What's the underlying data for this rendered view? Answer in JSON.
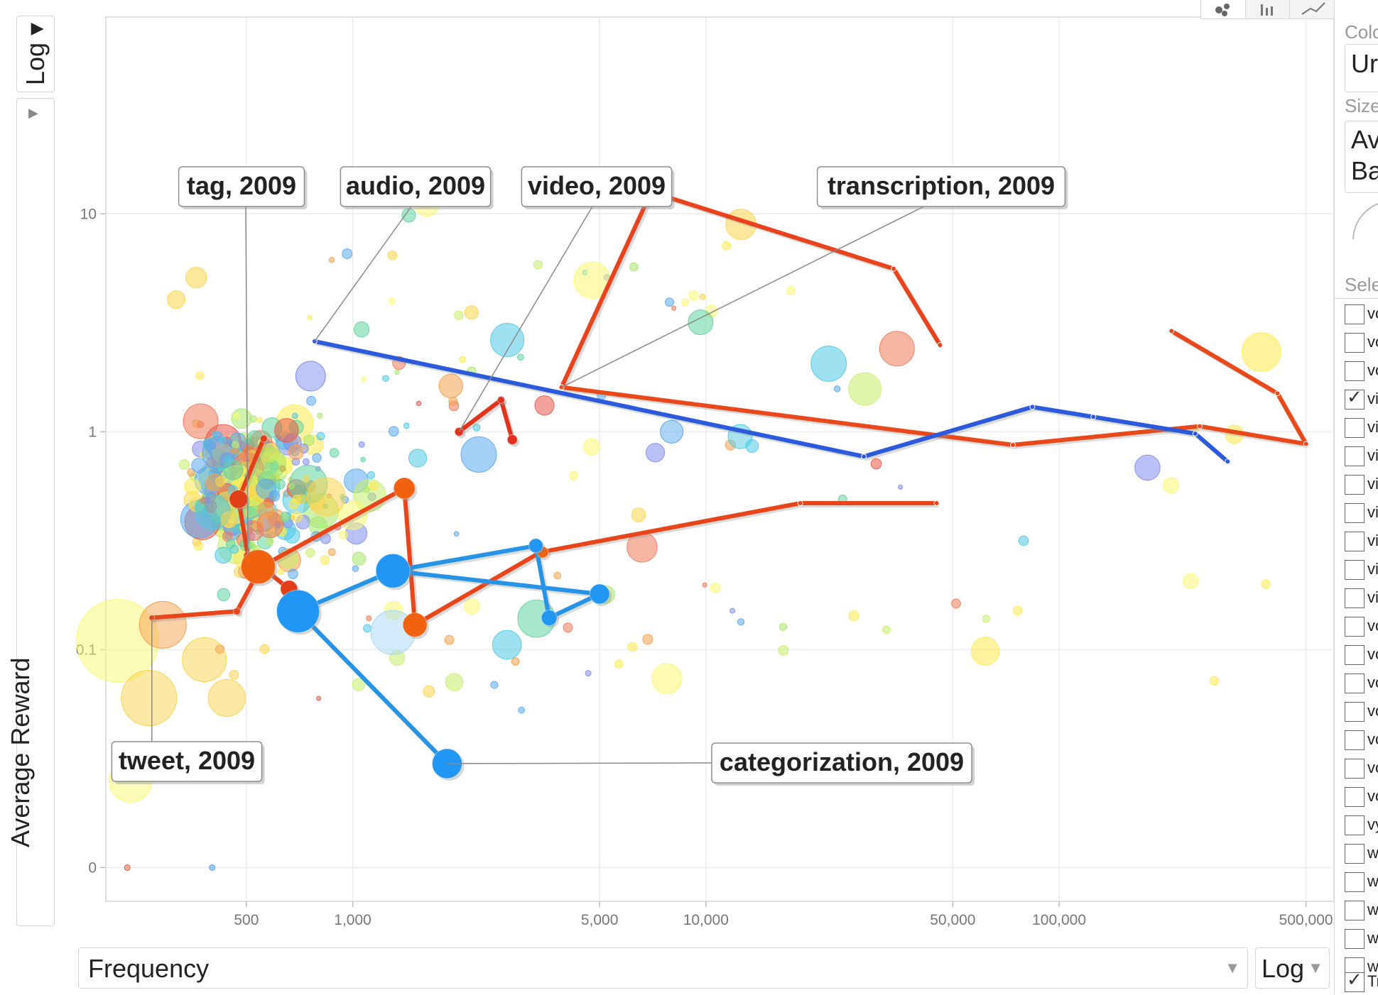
{
  "chart_data": {
    "type": "scatter",
    "variant": "bubble-motion",
    "x_axis": {
      "label": "Frequency",
      "scale": "log",
      "range": [
        200,
        600000
      ],
      "ticks": [
        500,
        1000,
        5000,
        10000,
        50000,
        100000,
        500000
      ],
      "tick_labels": [
        "500",
        "1,000",
        "5,000",
        "10,000",
        "50,000",
        "100,000",
        "500,000"
      ]
    },
    "y_axis": {
      "label": "Average Reward",
      "scale": "log",
      "range": [
        0.007,
        80
      ],
      "ticks": [
        0.01,
        0.1,
        1,
        10
      ],
      "tick_labels": [
        "0",
        "0.1",
        "1",
        "10"
      ]
    },
    "grid": true,
    "trails": [
      {
        "word": "transcription",
        "label": "transcription, 2009",
        "color": "#e8431c",
        "points": [
          [
            3900,
            1.6
          ],
          [
            7000,
            12.6
          ],
          [
            34000,
            5.6
          ],
          [
            46000,
            2.5
          ]
        ]
      },
      {
        "word": "transcription",
        "label": "",
        "color": "#e8481a",
        "points": [
          [
            3900,
            1.6
          ],
          [
            74000,
            0.87
          ],
          [
            250000,
            1.06
          ],
          [
            500000,
            0.88
          ]
        ]
      },
      {
        "word": "transcription",
        "label": "",
        "color": "#e8481a",
        "points": [
          [
            208000,
            2.9
          ],
          [
            415000,
            1.5
          ],
          [
            500000,
            0.88
          ]
        ]
      },
      {
        "word": "audio",
        "label": "audio, 2009",
        "color": "#2b5bdc",
        "points": [
          [
            780,
            2.6
          ],
          [
            28000,
            0.77
          ],
          [
            84000,
            1.3
          ],
          [
            125000,
            1.17
          ],
          [
            243000,
            0.98
          ],
          [
            300000,
            0.73
          ]
        ]
      },
      {
        "word": "video",
        "label": "video, 2009",
        "color": "#e2321c",
        "points": [
          [
            2000,
            1.0
          ],
          [
            2630,
            1.4
          ],
          [
            2830,
            0.92
          ]
        ]
      },
      {
        "word": "tag",
        "label": "tag, 2009",
        "color": "#e23e1a",
        "points": [
          [
            560,
            0.93
          ],
          [
            475,
            0.49
          ],
          [
            505,
            0.27
          ],
          [
            660,
            0.19
          ]
        ]
      },
      {
        "word": "tweet",
        "label": "tweet, 2009",
        "color": "#e8451b",
        "points": [
          [
            270,
            0.14
          ],
          [
            470,
            0.15
          ],
          [
            550,
            0.24
          ],
          [
            1400,
            0.55
          ],
          [
            1500,
            0.13
          ],
          [
            3400,
            0.28
          ],
          [
            18500,
            0.47
          ],
          [
            45000,
            0.47
          ]
        ]
      },
      {
        "word": "categorization",
        "label": "categorization, 2009",
        "color": "#2594e6",
        "points": [
          [
            1850,
            0.03
          ],
          [
            700,
            0.15
          ],
          [
            1300,
            0.23
          ],
          [
            3300,
            0.3
          ],
          [
            3600,
            0.14
          ],
          [
            5000,
            0.18
          ],
          [
            1300,
            0.23
          ]
        ]
      }
    ],
    "trail_markers": [
      {
        "x": 560,
        "y": 0.93,
        "r": 5,
        "color": "#e23e1a"
      },
      {
        "x": 475,
        "y": 0.49,
        "r": 13,
        "color": "#e23e1a"
      },
      {
        "x": 505,
        "y": 0.27,
        "r": 6,
        "color": "#e23e1a"
      },
      {
        "x": 660,
        "y": 0.19,
        "r": 12,
        "color": "#e23e1a"
      },
      {
        "x": 540,
        "y": 0.24,
        "r": 24,
        "color": "#f0620f"
      },
      {
        "x": 1400,
        "y": 0.55,
        "r": 15,
        "color": "#f0620f"
      },
      {
        "x": 1500,
        "y": 0.13,
        "r": 17,
        "color": "#f0620f"
      },
      {
        "x": 3450,
        "y": 0.28,
        "r": 8,
        "color": "#f0620f"
      },
      {
        "x": 470,
        "y": 0.15,
        "r": 5,
        "color": "#e8451b"
      },
      {
        "x": 270,
        "y": 0.14,
        "r": 4,
        "color": "#e8451b"
      },
      {
        "x": 700,
        "y": 0.15,
        "r": 30,
        "color": "#2196f3"
      },
      {
        "x": 1300,
        "y": 0.23,
        "r": 24,
        "color": "#2196f3"
      },
      {
        "x": 3300,
        "y": 0.3,
        "r": 10,
        "color": "#2196f3"
      },
      {
        "x": 3600,
        "y": 0.14,
        "r": 11,
        "color": "#2196f3"
      },
      {
        "x": 5000,
        "y": 0.18,
        "r": 14,
        "color": "#2196f3"
      },
      {
        "x": 1850,
        "y": 0.03,
        "r": 21,
        "color": "#2196f3"
      },
      {
        "x": 2000,
        "y": 1.0,
        "r": 6,
        "color": "#e2321c"
      },
      {
        "x": 2630,
        "y": 1.4,
        "r": 5,
        "color": "#e2321c"
      },
      {
        "x": 2830,
        "y": 0.92,
        "r": 7,
        "color": "#e2321c"
      }
    ],
    "annotations": [
      {
        "text": "tag, 2009",
        "box_x": 340,
        "anchor": [
          505,
          0.27
        ]
      },
      {
        "text": "audio, 2009",
        "box_x": 585,
        "anchor": [
          780,
          2.6
        ]
      },
      {
        "text": "video, 2009",
        "box_x": 840,
        "anchor": [
          2000,
          1.0
        ]
      },
      {
        "text": "transcription, 2009",
        "box_x": 1325,
        "anchor": [
          3900,
          1.6
        ]
      },
      {
        "text": "tweet, 2009",
        "box_x": 263,
        "anchor": [
          270,
          0.14
        ]
      },
      {
        "text": "categorization, 2009",
        "box_x": 1185,
        "anchor": [
          1850,
          0.03
        ]
      }
    ],
    "bubble_count": 440,
    "bubble_palette": [
      "#ffe94d",
      "#f9f871",
      "#a6e86a",
      "#5fd3a1",
      "#4ec9e6",
      "#5aa9f0",
      "#7f8ef0",
      "#f5a14d",
      "#f07a5a",
      "#e85a4a",
      "#fcd34d",
      "#c7ee6a"
    ],
    "extra_bubbles": [
      {
        "x": 216,
        "y": 0.11,
        "r": 58,
        "color": "#f9f871"
      },
      {
        "x": 265,
        "y": 0.06,
        "r": 39,
        "color": "#fcd34d"
      },
      {
        "x": 235,
        "y": 0.025,
        "r": 30,
        "color": "#f9f871"
      },
      {
        "x": 290,
        "y": 0.13,
        "r": 33,
        "color": "#f5a14d"
      },
      {
        "x": 380,
        "y": 0.09,
        "r": 31,
        "color": "#fcd34d"
      },
      {
        "x": 440,
        "y": 0.06,
        "r": 26,
        "color": "#fcd34d"
      },
      {
        "x": 1300,
        "y": 0.12,
        "r": 31,
        "color": "#a6d8f5"
      },
      {
        "x": 12500,
        "y": 0.95,
        "r": 17,
        "color": "#4ec9e6"
      },
      {
        "x": 8000,
        "y": 1.0,
        "r": 16,
        "color": "#5aa9f0"
      },
      {
        "x": 760,
        "y": 1.8,
        "r": 21,
        "color": "#7f8ef0"
      }
    ]
  },
  "controls": {
    "y_scale": "Log",
    "x_field": "Frequency",
    "x_scale": "Log"
  },
  "panel": {
    "color_label": "Colo",
    "color_value": "Ur",
    "size_label": "Size",
    "size_value_1": "Av",
    "size_value_2": "Ba",
    "select_label": "Sele",
    "items": [
      "vo",
      "vo",
      "vo",
      "vi",
      "vi",
      "vi",
      "vi",
      "vi",
      "vi",
      "vi",
      "vi",
      "vo",
      "vo",
      "vo",
      "vo",
      "vo",
      "vo",
      "vo",
      "vy",
      "w",
      "w",
      "w",
      "w",
      "w"
    ],
    "checked_index": 3,
    "trails_label": "Tr"
  }
}
